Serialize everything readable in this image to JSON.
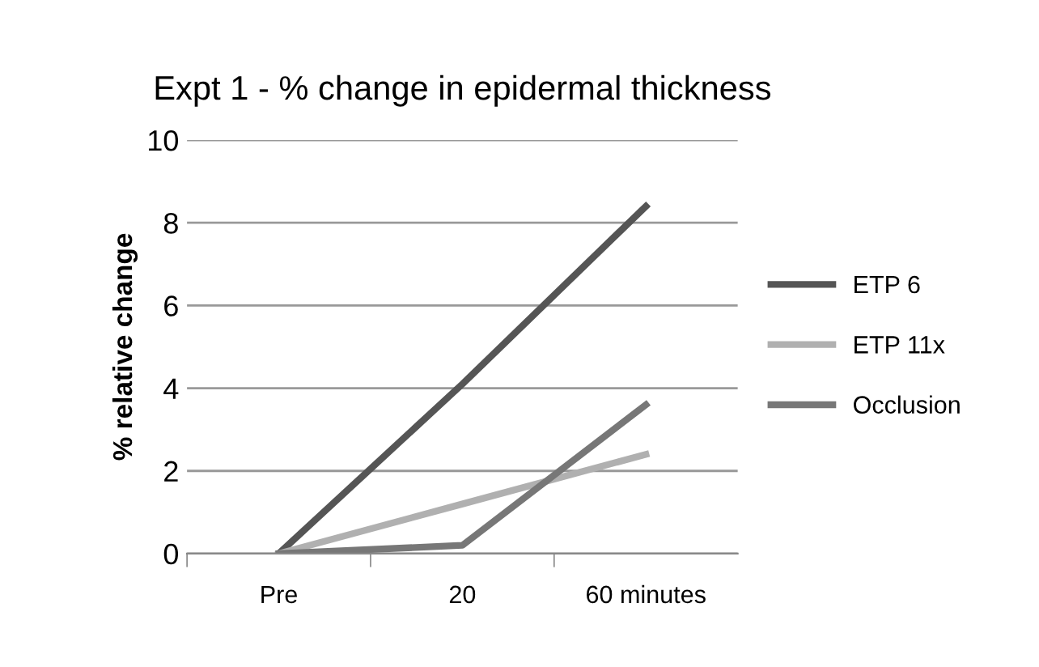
{
  "chart_data": {
    "type": "line",
    "title": "Expt 1 - % change in epidermal thickness",
    "ylabel": "% relative change",
    "categories": [
      "Pre",
      "20",
      "60 minutes"
    ],
    "series": [
      {
        "name": "ETP 6",
        "color": "#555555",
        "values": [
          0,
          4.1,
          8.4
        ]
      },
      {
        "name": "ETP 11x",
        "color": "#b0b0b0",
        "values": [
          0,
          1.2,
          2.4
        ]
      },
      {
        "name": "Occlusion",
        "color": "#777777",
        "values": [
          0,
          0.2,
          3.6
        ]
      }
    ],
    "ylim": [
      0,
      10
    ],
    "yticks": [
      0,
      2,
      4,
      6,
      8,
      10
    ],
    "grid": "y",
    "legend": "right",
    "marker": "none",
    "line_style": "solid"
  }
}
